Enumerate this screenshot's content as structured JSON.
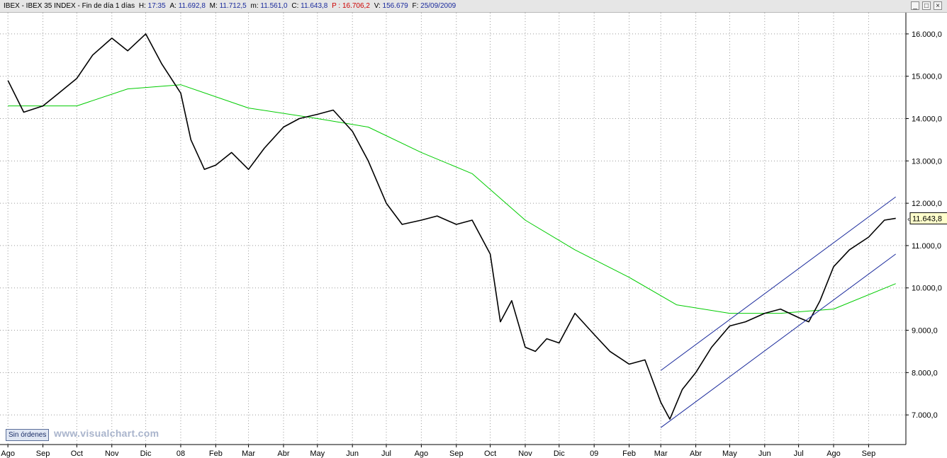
{
  "header": {
    "symbol": "IBEX - IBEX 35 INDEX - Fin de día 1 días",
    "hour_label": "H:",
    "hour": "17:35",
    "high_label": "A:",
    "high": "11.692,8",
    "mid_label": "M:",
    "mid": "11.712,5",
    "low_label": "m:",
    "low": "11.561,0",
    "close_label": "C:",
    "close": "11.643,8",
    "p_label": "P :",
    "p": "16.706,2",
    "vol_label": "V:",
    "vol": "156.679",
    "date_label": "F:",
    "date": "25/09/2009"
  },
  "window_controls": {
    "minimize": "_",
    "maximize": "□",
    "close": "×"
  },
  "sin_ordenes": "Sin órdenes",
  "watermark": "www.visualchart.com",
  "colors": {
    "price": "#000000",
    "ma": "#00cc00",
    "channel": "#1a2a9c",
    "grid": "#9a9a9a",
    "axis": "#000000",
    "label_box": "#ffffcc"
  },
  "chart_data": {
    "type": "line",
    "title": "IBEX - IBEX 35 INDEX",
    "ylim": [
      6300,
      16500
    ],
    "y_ticks": [
      "16.000,0",
      "15.000,0",
      "14.000,0",
      "13.000,0",
      "12.000,0",
      "11.000,0",
      "10.000,0",
      "9.000,0",
      "8.000,0",
      "7.000,0"
    ],
    "x_ticks": [
      "Ago",
      "Sep",
      "Oct",
      "Nov",
      "Dic",
      "08",
      "Feb",
      "Mar",
      "Abr",
      "May",
      "Jun",
      "Jul",
      "Ago",
      "Sep",
      "Oct",
      "Nov",
      "Dic",
      "09",
      "Feb",
      "Mar",
      "Abr",
      "May",
      "Jun",
      "Jul",
      "Ago",
      "Sep"
    ],
    "last_value_label": "11.643,8",
    "series": [
      {
        "kind": "price",
        "x": [
          "2007-08-01",
          "2007-08-15",
          "2007-09-01",
          "2007-09-15",
          "2007-10-01",
          "2007-10-15",
          "2007-11-01",
          "2007-11-15",
          "2007-12-01",
          "2007-12-15",
          "2008-01-01",
          "2008-01-10",
          "2008-01-22",
          "2008-02-01",
          "2008-02-15",
          "2008-03-01",
          "2008-03-15",
          "2008-04-01",
          "2008-04-15",
          "2008-05-01",
          "2008-05-15",
          "2008-06-01",
          "2008-06-15",
          "2008-07-01",
          "2008-07-15",
          "2008-08-01",
          "2008-08-15",
          "2008-09-01",
          "2008-09-15",
          "2008-10-01",
          "2008-10-10",
          "2008-10-20",
          "2008-11-01",
          "2008-11-10",
          "2008-11-20",
          "2008-12-01",
          "2008-12-15",
          "2009-01-01",
          "2009-01-15",
          "2009-02-01",
          "2009-02-15",
          "2009-03-01",
          "2009-03-09",
          "2009-03-20",
          "2009-04-01",
          "2009-04-15",
          "2009-05-01",
          "2009-05-15",
          "2009-06-01",
          "2009-06-15",
          "2009-07-01",
          "2009-07-10",
          "2009-07-20",
          "2009-08-01",
          "2009-08-15",
          "2009-09-01",
          "2009-09-15",
          "2009-09-25"
        ],
        "values": [
          14900,
          14150,
          14300,
          14600,
          14950,
          15500,
          15900,
          15600,
          16000,
          15300,
          14600,
          13500,
          12800,
          12900,
          13200,
          12800,
          13300,
          13800,
          14000,
          14100,
          14200,
          13700,
          13000,
          12000,
          11500,
          11600,
          11700,
          11500,
          11600,
          10800,
          9200,
          9700,
          8600,
          8500,
          8800,
          8700,
          9400,
          8900,
          8500,
          8200,
          8300,
          7300,
          6900,
          7600,
          8000,
          8600,
          9100,
          9200,
          9400,
          9500,
          9300,
          9200,
          9700,
          10500,
          10900,
          11200,
          11600,
          11644
        ]
      },
      {
        "kind": "moving_average",
        "x": [
          "2007-08-01",
          "2007-10-01",
          "2007-11-15",
          "2008-01-01",
          "2008-03-01",
          "2008-05-01",
          "2008-06-15",
          "2008-08-01",
          "2008-09-15",
          "2008-11-01",
          "2008-12-15",
          "2009-02-01",
          "2009-03-15",
          "2009-05-01",
          "2009-06-15",
          "2009-08-01",
          "2009-09-25"
        ],
        "values": [
          14300,
          14300,
          14700,
          14800,
          14250,
          14000,
          13800,
          13200,
          12700,
          11600,
          10900,
          10250,
          9600,
          9400,
          9400,
          9500,
          10100
        ]
      }
    ],
    "channel_lines": [
      {
        "x": [
          "2009-03-01",
          "2009-09-25"
        ],
        "values": [
          8050,
          12150
        ]
      },
      {
        "x": [
          "2009-03-01",
          "2009-09-25"
        ],
        "values": [
          6700,
          10800
        ]
      }
    ]
  }
}
